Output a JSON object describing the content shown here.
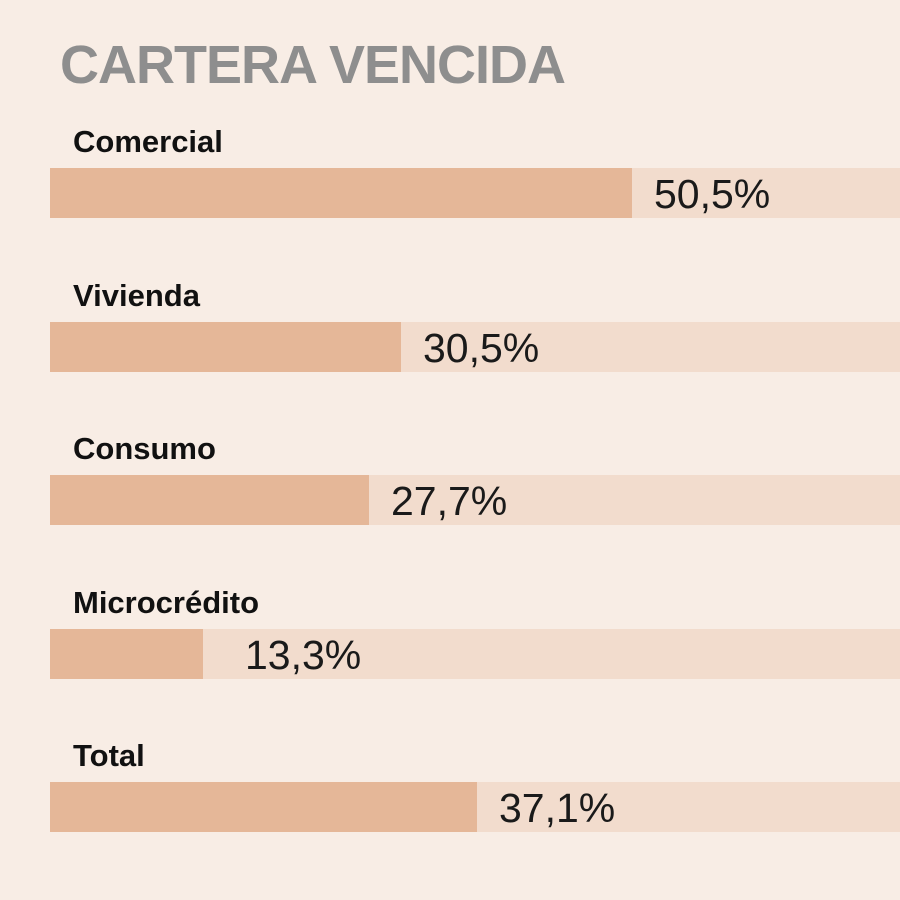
{
  "chart_data": {
    "type": "bar",
    "orientation": "horizontal",
    "title": "CARTERA VENCIDA",
    "categories": [
      "Comercial",
      "Vivienda",
      "Consumo",
      "Microcrédito",
      "Total"
    ],
    "values": [
      50.5,
      30.5,
      27.7,
      13.3,
      37.1
    ],
    "value_labels": [
      "50,5%",
      "30,5%",
      "27,7%",
      "13,3%",
      "37,1%"
    ],
    "xlim": [
      0,
      73.8
    ],
    "unit": "%",
    "grid": false,
    "legend": "none"
  },
  "colors": {
    "background": "#f8ede5",
    "title": "#8e8e8e",
    "bar_fill": "#e5b798",
    "bar_track": "#f2dccd",
    "category_text": "#111111",
    "value_text": "#1a1a1a"
  }
}
